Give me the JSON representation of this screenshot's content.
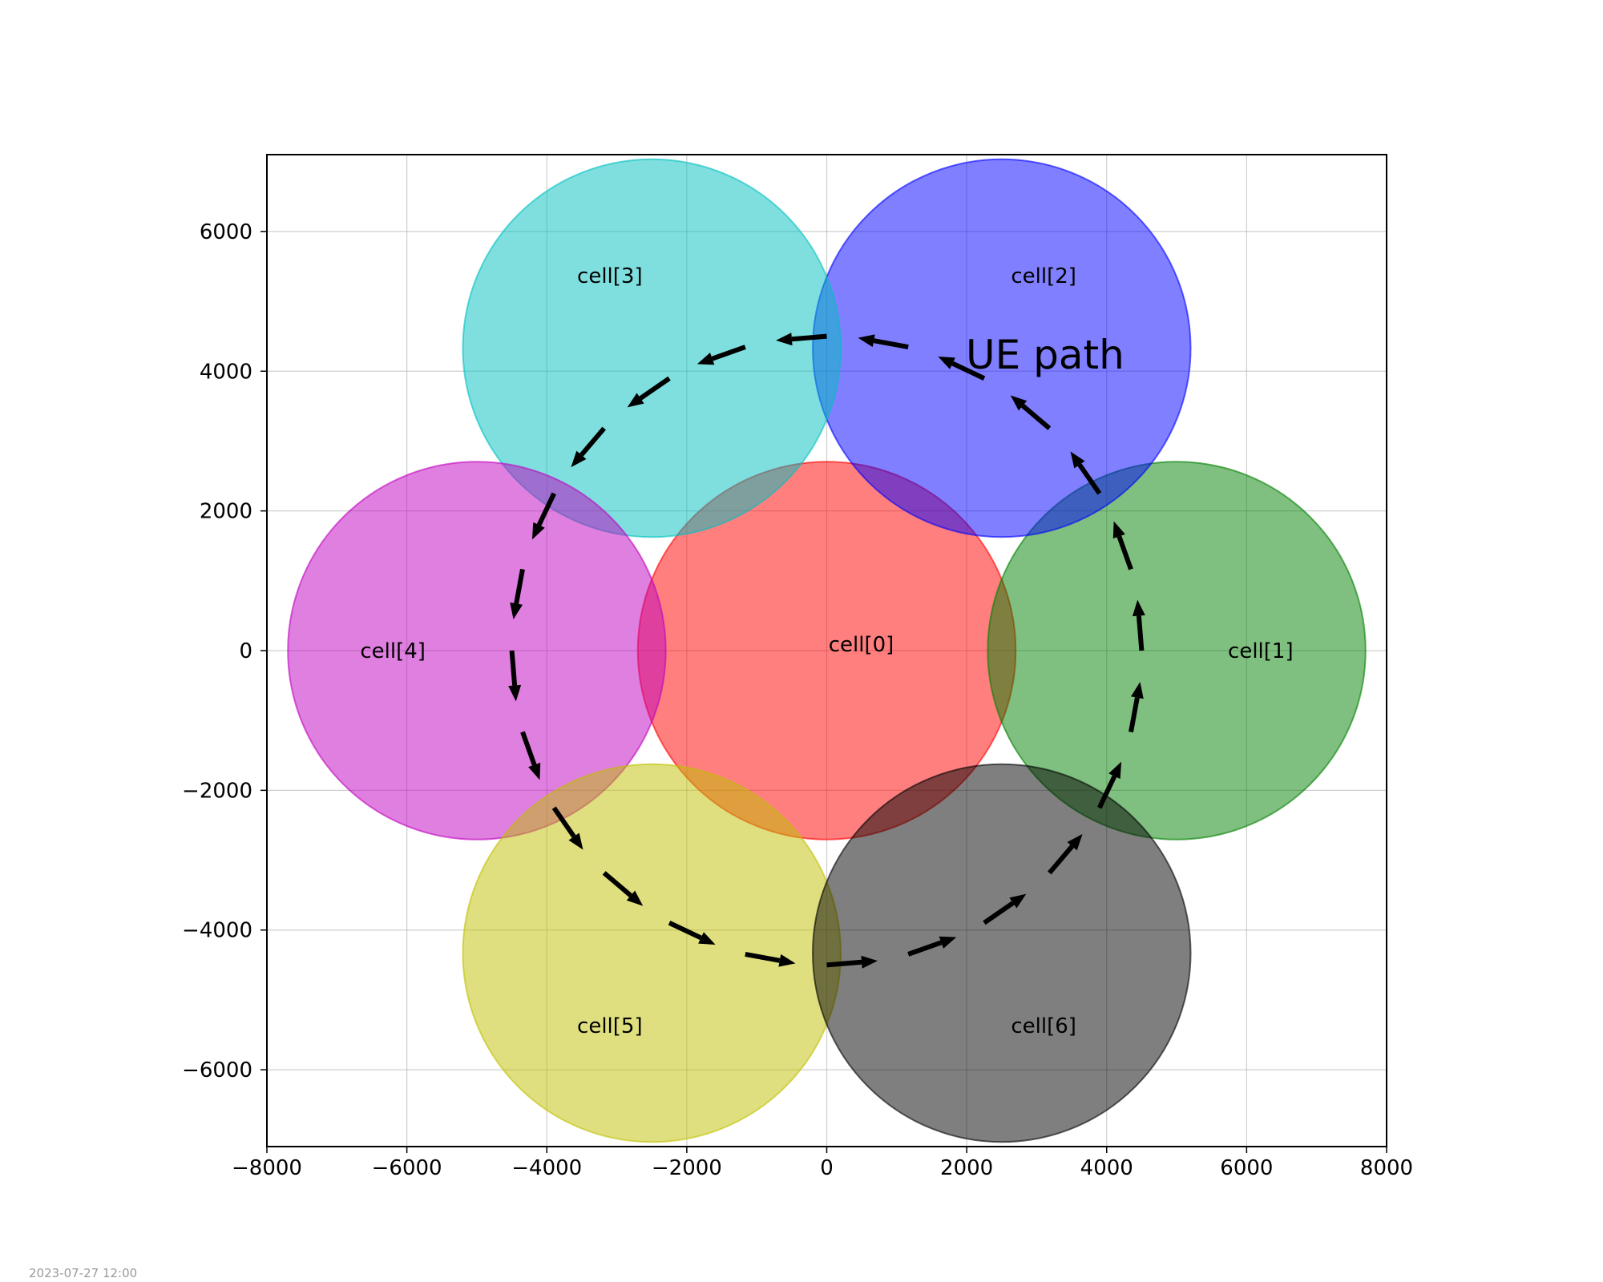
{
  "chart_data": {
    "type": "scatter",
    "title": "",
    "xlabel": "",
    "ylabel": "",
    "xlim": [
      -8000,
      8000
    ],
    "ylim": [
      -7100,
      7100
    ],
    "xticks": [
      -8000,
      -6000,
      -4000,
      -2000,
      0,
      2000,
      4000,
      6000,
      8000
    ],
    "xtick_labels": [
      "−8000",
      "−6000",
      "−4000",
      "−2000",
      "0",
      "2000",
      "4000",
      "6000",
      "8000"
    ],
    "yticks": [
      -6000,
      -4000,
      -2000,
      0,
      2000,
      4000,
      6000
    ],
    "ytick_labels": [
      "−6000",
      "−4000",
      "−2000",
      "0",
      "2000",
      "4000",
      "6000"
    ],
    "grid": true,
    "cells": [
      {
        "label": "cell[0]",
        "center": [
          0,
          0
        ],
        "radius": 2700,
        "color": "#ff0000"
      },
      {
        "label": "cell[1]",
        "center": [
          5000,
          0
        ],
        "radius": 2700,
        "color": "#008000"
      },
      {
        "label": "cell[2]",
        "center": [
          2500,
          4330
        ],
        "radius": 2700,
        "color": "#0000ff"
      },
      {
        "label": "cell[3]",
        "center": [
          -2500,
          4330
        ],
        "radius": 2700,
        "color": "#00bfbf"
      },
      {
        "label": "cell[4]",
        "center": [
          -5000,
          0
        ],
        "radius": 2700,
        "color": "#bf00bf"
      },
      {
        "label": "cell[5]",
        "center": [
          -2500,
          -4330
        ],
        "radius": 2700,
        "color": "#bfbf00"
      },
      {
        "label": "cell[6]",
        "center": [
          2500,
          -4330
        ],
        "radius": 2700,
        "color": "#000000"
      }
    ],
    "annotation": "UE path",
    "ue_path": {
      "center": [
        0,
        0
      ],
      "radius": 4500,
      "arrow_count": 24,
      "direction": "counterclockwise",
      "color": "#000000"
    }
  },
  "footer": {
    "timestamp": "2023-07-27 12:00"
  }
}
